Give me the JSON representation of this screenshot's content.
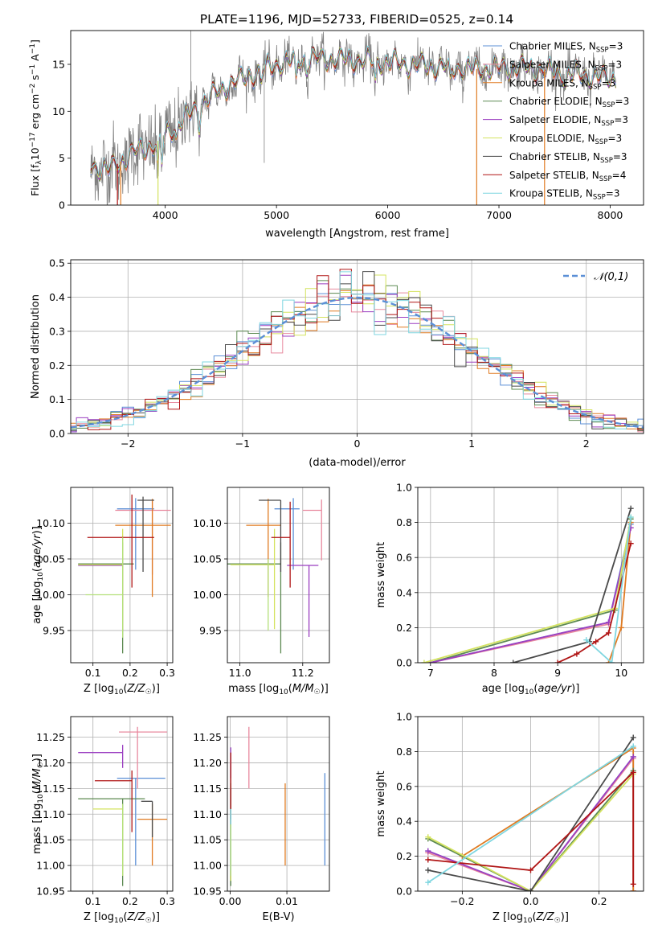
{
  "figure_title": "PLATE=1196, MJD=52733, FIBERID=0525, z=0.14",
  "colors": {
    "Chabrier MILES": "#5b8fd6",
    "Salpeter MILES": "#e8899e",
    "Kroupa MILES": "#e07b22",
    "Chabrier ELODIE": "#5d8a52",
    "Salpeter ELODIE": "#9b3fc1",
    "Kroupa ELODIE": "#d4e35f",
    "Chabrier STELIB": "#4a4a4a",
    "Salpeter STELIB": "#b01515",
    "Kroupa STELIB": "#7fd6e0",
    "extra": "#b4e07a",
    "normal": "#5b8fd6"
  },
  "chart_data": [
    {
      "id": "spectrum",
      "type": "line",
      "xlabel": "wavelength [Angstrom, rest frame]",
      "ylabel": "Flux [f_λ10^−17 erg cm^−2 s^−1 A^−1]",
      "xlim": [
        3150,
        8300
      ],
      "ylim": [
        0,
        18.6
      ],
      "xticks": [
        4000,
        5000,
        6000,
        7000,
        8000
      ],
      "yticks": [
        0,
        5,
        10,
        15
      ],
      "grid": false,
      "legend_position": "right",
      "legend": [
        {
          "label": "Chabrier MILES, N_SSP=3",
          "key": "Chabrier MILES"
        },
        {
          "label": "Salpeter MILES, N_SSP=3",
          "key": "Salpeter MILES"
        },
        {
          "label": "Kroupa MILES, N_SSP=3",
          "key": "Kroupa MILES"
        },
        {
          "label": "Chabrier ELODIE, N_SSP=3",
          "key": "Chabrier ELODIE"
        },
        {
          "label": "Salpeter ELODIE, N_SSP=3",
          "key": "Salpeter ELODIE"
        },
        {
          "label": "Kroupa ELODIE, N_SSP=3",
          "key": "Kroupa ELODIE"
        },
        {
          "label": "Chabrier STELIB, N_SSP=3",
          "key": "Chabrier STELIB"
        },
        {
          "label": "Salpeter STELIB, N_SSP=4",
          "key": "Salpeter STELIB"
        },
        {
          "label": "Kroupa STELIB, N_SSP=3",
          "key": "Kroupa STELIB"
        }
      ],
      "continuum": [
        [
          3330,
          4.2
        ],
        [
          3500,
          3.8
        ],
        [
          3700,
          5.5
        ],
        [
          3900,
          6.5
        ],
        [
          4000,
          7.5
        ],
        [
          4200,
          9.5
        ],
        [
          4400,
          11.5
        ],
        [
          4600,
          13.0
        ],
        [
          4800,
          14.0
        ],
        [
          5000,
          15.0
        ],
        [
          5200,
          15.5
        ],
        [
          5400,
          15.6
        ],
        [
          5600,
          15.5
        ],
        [
          5800,
          15.4
        ],
        [
          6000,
          15.2
        ],
        [
          6200,
          15.0
        ],
        [
          6400,
          14.8
        ],
        [
          6600,
          14.6
        ],
        [
          6800,
          14.5
        ],
        [
          7000,
          14.6
        ],
        [
          7200,
          14.7
        ],
        [
          7400,
          14.4
        ],
        [
          7600,
          14.0
        ],
        [
          7800,
          13.8
        ],
        [
          8000,
          13.5
        ],
        [
          8050,
          13.5
        ]
      ]
    },
    {
      "id": "residuals",
      "type": "histogram",
      "xlabel": "(data-model)/error",
      "ylabel": "Normed distribution",
      "xlim": [
        -2.5,
        2.5
      ],
      "ylim": [
        0,
        0.51
      ],
      "xticks": [
        -2,
        -1,
        0,
        1,
        2
      ],
      "yticks": [
        0,
        0.1,
        0.2,
        0.3,
        0.4,
        0.5
      ],
      "grid": true,
      "legend_position": "top-right",
      "legend_label": "𝒩(0,1)"
    },
    {
      "id": "age-vs-Z",
      "type": "errorbar",
      "xlabel": "Z [log10(Z/Z☉)]",
      "ylabel": "age  [log10(age/yr)]",
      "xlim": [
        0.04,
        0.315
      ],
      "ylim": [
        9.905,
        10.15
      ],
      "xticks": [
        0.1,
        0.2,
        0.3
      ],
      "yticks": [
        9.95,
        10.0,
        10.05,
        10.1
      ],
      "grid": true,
      "points": [
        {
          "key": "Chabrier MILES",
          "x": 0.215,
          "xerr": [
            0.05,
            0.05
          ],
          "y": 10.12,
          "yerr": [
            0.085,
            0.015
          ]
        },
        {
          "key": "Salpeter MILES",
          "x": 0.26,
          "xerr": [
            0.1,
            0.05
          ],
          "y": 10.118,
          "yerr": [
            0.09,
            0.015
          ]
        },
        {
          "key": "Kroupa MILES",
          "x": 0.26,
          "xerr": [
            0.1,
            0.05
          ],
          "y": 10.097,
          "yerr": [
            0.1,
            0.037
          ]
        },
        {
          "key": "Chabrier ELODIE",
          "x": 0.18,
          "xerr": [
            0.12,
            0.03
          ],
          "y": 10.043,
          "yerr": [
            0.125,
            0.03
          ]
        },
        {
          "key": "Salpeter ELODIE",
          "x": 0.18,
          "xerr": [
            0.12,
            0.0
          ],
          "y": 10.041,
          "yerr": [
            0.09,
            0.005
          ]
        },
        {
          "key": "Kroupa ELODIE",
          "x": 0.18,
          "xerr": [
            0.12,
            0.0
          ],
          "y": 10.042,
          "yerr": [
            0.09,
            0.05
          ]
        },
        {
          "key": "Chabrier STELIB",
          "x": 0.235,
          "xerr": [
            0.015,
            0.03
          ],
          "y": 10.132,
          "yerr": [
            0.1,
            0.005
          ]
        },
        {
          "key": "Salpeter STELIB",
          "x": 0.205,
          "xerr": [
            0.12,
            0.06
          ],
          "y": 10.08,
          "yerr": [
            0.07,
            0.06
          ]
        },
        {
          "key": "extra",
          "x": 0.18,
          "xerr": [
            0.1,
            0.0
          ],
          "y": 10.0,
          "yerr": [
            0.06,
            0.08
          ]
        }
      ]
    },
    {
      "id": "age-vs-mass",
      "type": "errorbar",
      "xlabel": "mass [log10(M/M☉)]",
      "ylabel": "",
      "xlim": [
        10.96,
        11.285
      ],
      "ylim": [
        9.905,
        10.15
      ],
      "xticks": [
        11.0,
        11.2
      ],
      "yticks": [
        9.95,
        10.0,
        10.05,
        10.1
      ],
      "grid": true,
      "points": [
        {
          "key": "Chabrier MILES",
          "x": 11.17,
          "xerr": [
            0.06,
            0.02
          ],
          "y": 10.12,
          "yerr": [
            0.085,
            0.015
          ]
        },
        {
          "key": "Salpeter MILES",
          "x": 11.26,
          "xerr": [
            0.06,
            0.0
          ],
          "y": 10.118,
          "yerr": [
            0.07,
            0.015
          ]
        },
        {
          "key": "Kroupa MILES",
          "x": 11.09,
          "xerr": [
            0.07,
            0.04
          ],
          "y": 10.097,
          "yerr": [
            0.1,
            0.037
          ]
        },
        {
          "key": "Chabrier ELODIE",
          "x": 11.13,
          "xerr": [
            0.17,
            0.0
          ],
          "y": 10.043,
          "yerr": [
            0.125,
            0.03
          ]
        },
        {
          "key": "Salpeter ELODIE",
          "x": 11.22,
          "xerr": [
            0.07,
            0.03
          ],
          "y": 10.041,
          "yerr": [
            0.1,
            0.0
          ]
        },
        {
          "key": "Kroupa ELODIE",
          "x": 11.11,
          "xerr": [
            0.14,
            0.0
          ],
          "y": 10.042,
          "yerr": [
            0.09,
            0.05
          ]
        },
        {
          "key": "Chabrier STELIB",
          "x": 11.13,
          "xerr": [
            0.07,
            0.0
          ],
          "y": 10.132,
          "yerr": [
            0.1,
            0.0
          ]
        },
        {
          "key": "Salpeter STELIB",
          "x": 11.16,
          "xerr": [
            0.06,
            0.0
          ],
          "y": 10.08,
          "yerr": [
            0.07,
            0.05
          ]
        },
        {
          "key": "extra",
          "x": 11.09,
          "xerr": [
            0.0,
            0.0
          ],
          "y": 10.0,
          "yerr": [
            0.05,
            0.05
          ]
        }
      ]
    },
    {
      "id": "mass-weight-vs-age",
      "type": "line",
      "xlabel": "age  [log10(age/yr)]",
      "ylabel": "mass weight",
      "xlim": [
        6.8,
        10.35
      ],
      "ylim": [
        0,
        1.0
      ],
      "xticks": [
        7,
        8,
        9,
        10
      ],
      "yticks": [
        0.0,
        0.2,
        0.4,
        0.6,
        0.8,
        1.0
      ],
      "grid": true,
      "series": [
        {
          "key": "Chabrier MILES",
          "x": [
            7.0,
            9.8,
            10.15
          ],
          "y": [
            0.0,
            0.23,
            0.79
          ]
        },
        {
          "key": "Salpeter MILES",
          "x": [
            7.0,
            9.8,
            10.15
          ],
          "y": [
            0.0,
            0.22,
            0.77
          ]
        },
        {
          "key": "Kroupa MILES",
          "x": [
            9.8,
            10.0,
            10.15
          ],
          "y": [
            0.0,
            0.2,
            0.8
          ]
        },
        {
          "key": "Chabrier ELODIE",
          "x": [
            7.0,
            9.9,
            10.15
          ],
          "y": [
            0.0,
            0.3,
            0.82
          ]
        },
        {
          "key": "Salpeter ELODIE",
          "x": [
            7.0,
            9.8,
            10.15
          ],
          "y": [
            0.0,
            0.23,
            0.77
          ]
        },
        {
          "key": "Kroupa ELODIE",
          "x": [
            6.9,
            9.9,
            10.15
          ],
          "y": [
            0.0,
            0.31,
            0.83
          ]
        },
        {
          "key": "Chabrier STELIB",
          "x": [
            8.3,
            9.5,
            10.15
          ],
          "y": [
            0.0,
            0.12,
            0.88
          ]
        },
        {
          "key": "Salpeter STELIB",
          "x": [
            9.0,
            9.3,
            9.6,
            9.8,
            10.15
          ],
          "y": [
            0.0,
            0.05,
            0.12,
            0.17,
            0.68
          ]
        },
        {
          "key": "Kroupa STELIB",
          "x": [
            9.45,
            9.85,
            10.15
          ],
          "y": [
            0.13,
            0.0,
            0.83
          ]
        }
      ]
    },
    {
      "id": "mass-vs-Z",
      "type": "errorbar",
      "xlabel": "Z [log10(Z/Z☉)]",
      "ylabel": "mass [log10(M/M☉)]",
      "xlim": [
        0.04,
        0.315
      ],
      "ylim": [
        10.95,
        11.29
      ],
      "xticks": [
        0.1,
        0.2,
        0.3
      ],
      "yticks": [
        10.95,
        11.0,
        11.05,
        11.1,
        11.15,
        11.2,
        11.25
      ],
      "grid": true,
      "points": [
        {
          "key": "Chabrier MILES",
          "x": 0.215,
          "xerr": [
            0.05,
            0.08
          ],
          "y": 11.17,
          "yerr": [
            0.17,
            0.0
          ]
        },
        {
          "key": "Salpeter MILES",
          "x": 0.22,
          "xerr": [
            0.05,
            0.08
          ],
          "y": 11.26,
          "yerr": [
            0.11,
            0.01
          ]
        },
        {
          "key": "Kroupa MILES",
          "x": 0.26,
          "xerr": [
            0.04,
            0.04
          ],
          "y": 11.09,
          "yerr": [
            0.09,
            0.03
          ]
        },
        {
          "key": "Chabrier ELODIE",
          "x": 0.18,
          "xerr": [
            0.12,
            0.06
          ],
          "y": 11.13,
          "yerr": [
            0.17,
            0.0
          ]
        },
        {
          "key": "Salpeter ELODIE",
          "x": 0.18,
          "xerr": [
            0.12,
            0.0
          ],
          "y": 11.22,
          "yerr": [
            0.03,
            0.015
          ]
        },
        {
          "key": "Kroupa ELODIE",
          "x": 0.18,
          "xerr": [
            0.08,
            0.0
          ],
          "y": 11.11,
          "yerr": [
            0.13,
            0.0
          ]
        },
        {
          "key": "Chabrier STELIB",
          "x": 0.26,
          "xerr": [
            0.03,
            0.0
          ],
          "y": 11.125,
          "yerr": [
            0.07,
            0.0
          ]
        },
        {
          "key": "Salpeter STELIB",
          "x": 0.205,
          "xerr": [
            0.1,
            0.0
          ],
          "y": 11.165,
          "yerr": [
            0.1,
            0.02
          ]
        },
        {
          "key": "extra",
          "x": 0.18,
          "xerr": [
            0.0,
            0.0
          ],
          "y": 11.09,
          "yerr": [
            0.11,
            0.03
          ]
        }
      ]
    },
    {
      "id": "mass-vs-EBV",
      "type": "errorbar",
      "xlabel": "E(B-V)",
      "ylabel": "",
      "xlim": [
        -0.0005,
        0.0175
      ],
      "ylim": [
        10.95,
        11.29
      ],
      "xticks": [
        0.0,
        0.01
      ],
      "yticks": [
        10.95,
        11.0,
        11.05,
        11.1,
        11.15,
        11.2,
        11.25
      ],
      "grid": true,
      "points": [
        {
          "key": "Chabrier MILES",
          "x": 0.0167,
          "y": 11.09,
          "yerr": [
            0.09,
            0.09
          ]
        },
        {
          "key": "Salpeter MILES",
          "x": 0.0033,
          "y": 11.21,
          "yerr": [
            0.06,
            0.06
          ]
        },
        {
          "key": "Kroupa MILES",
          "x": 0.0097,
          "y": 11.08,
          "yerr": [
            0.08,
            0.08
          ]
        },
        {
          "key": "Chabrier ELODIE",
          "x": 0.0001,
          "y": 11.06,
          "yerr": [
            0.1,
            0.1
          ]
        },
        {
          "key": "Salpeter ELODIE",
          "x": 0.0001,
          "y": 11.2,
          "yerr": [
            0.03,
            0.03
          ]
        },
        {
          "key": "Kroupa ELODIE",
          "x": 0.0001,
          "y": 11.0,
          "yerr": [
            0.03,
            0.03
          ]
        },
        {
          "key": "Chabrier STELIB",
          "x": 0.0001,
          "y": 11.12,
          "yerr": [
            0.03,
            0.03
          ]
        },
        {
          "key": "Salpeter STELIB",
          "x": 0.0001,
          "y": 11.16,
          "yerr": [
            0.05,
            0.06
          ]
        },
        {
          "key": "Kroupa STELIB",
          "x": 0.0001,
          "y": 11.05,
          "yerr": [
            0.06,
            0.06
          ]
        },
        {
          "key": "extra",
          "x": 0.0001,
          "y": 11.03,
          "yerr": [
            0.05,
            0.05
          ]
        }
      ]
    },
    {
      "id": "mass-weight-vs-Z",
      "type": "line",
      "xlabel": "Z [log10(Z/Z☉)]",
      "ylabel": "mass weight",
      "xlim": [
        -0.33,
        0.33
      ],
      "ylim": [
        0,
        1.0
      ],
      "xticks": [
        -0.2,
        0.0,
        0.2
      ],
      "yticks": [
        0.0,
        0.2,
        0.4,
        0.6,
        0.8,
        1.0
      ],
      "grid": true,
      "series": [
        {
          "key": "Chabrier MILES",
          "x": [
            -0.3,
            0.0,
            0.3,
            0.3
          ],
          "y": [
            0.23,
            0.0,
            0.77,
            0.0
          ]
        },
        {
          "key": "Salpeter MILES",
          "x": [
            -0.3,
            0.0,
            0.3,
            0.3
          ],
          "y": [
            0.22,
            0.0,
            0.76,
            0.0
          ]
        },
        {
          "key": "Kroupa MILES",
          "x": [
            -0.2,
            0.3,
            0.3
          ],
          "y": [
            0.2,
            0.82,
            0.0
          ]
        },
        {
          "key": "Chabrier ELODIE",
          "x": [
            -0.3,
            0.0,
            0.3
          ],
          "y": [
            0.3,
            0.0,
            0.69
          ]
        },
        {
          "key": "Salpeter ELODIE",
          "x": [
            -0.3,
            0.0,
            0.3
          ],
          "y": [
            0.23,
            0.0,
            0.77
          ]
        },
        {
          "key": "Kroupa ELODIE",
          "x": [
            -0.3,
            0.0,
            0.3
          ],
          "y": [
            0.31,
            0.0,
            0.67
          ]
        },
        {
          "key": "Chabrier STELIB",
          "x": [
            -0.3,
            0.0,
            0.3
          ],
          "y": [
            0.12,
            0.0,
            0.88
          ]
        },
        {
          "key": "Salpeter STELIB",
          "x": [
            -0.3,
            0.0,
            0.3,
            0.3
          ],
          "y": [
            0.18,
            0.12,
            0.68,
            0.04
          ]
        },
        {
          "key": "Kroupa STELIB",
          "x": [
            -0.3,
            0.3
          ],
          "y": [
            0.05,
            0.83
          ]
        }
      ]
    }
  ]
}
